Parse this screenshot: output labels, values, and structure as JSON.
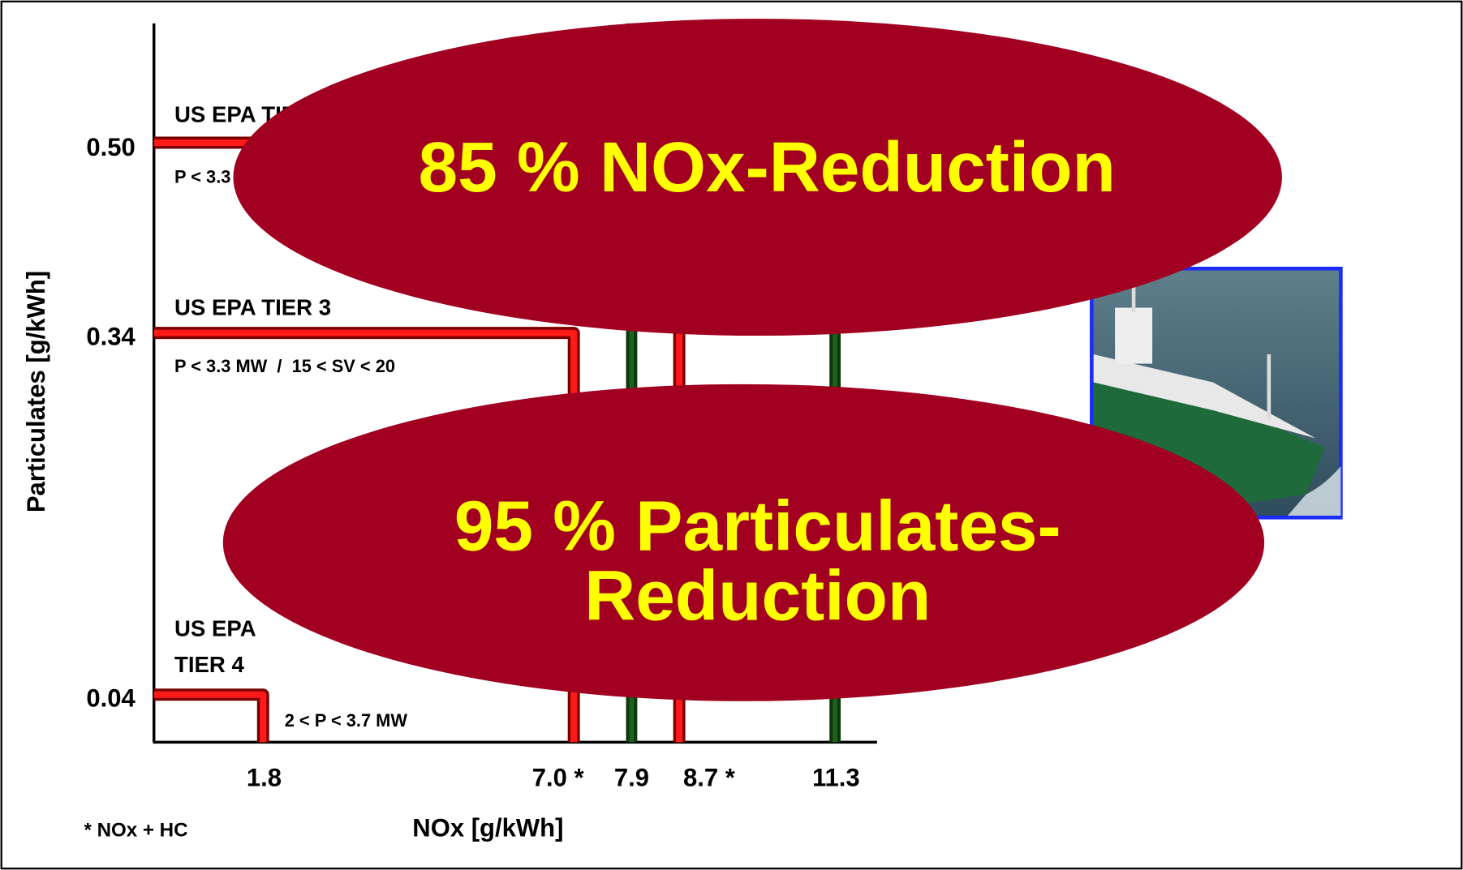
{
  "y_axis": {
    "title": "Particulates [g/kWh]",
    "ticks": [
      "0.50",
      "0.34",
      "0.04"
    ]
  },
  "x_axis": {
    "title": "NOx [g/kWh]",
    "ticks": [
      "1.8",
      "7.0 *",
      "7.9",
      "8.7 *",
      "11.3"
    ]
  },
  "footnote": "* NOx + HC",
  "limits": [
    {
      "label": "US EPA TIER 2",
      "condition": "P < 3.3 MW"
    },
    {
      "label": "US EPA TIER 3",
      "condition": "P < 3.3 MW  /  15 < SV < 20"
    },
    {
      "label_lines": [
        "US EPA",
        "TIER 4"
      ],
      "condition": "2 < P < 3.7 MW"
    }
  ],
  "callouts": [
    {
      "lines": [
        "85 % NOx-Reduction"
      ]
    },
    {
      "lines": [
        "95 % Particulates-",
        "Reduction"
      ]
    }
  ]
}
